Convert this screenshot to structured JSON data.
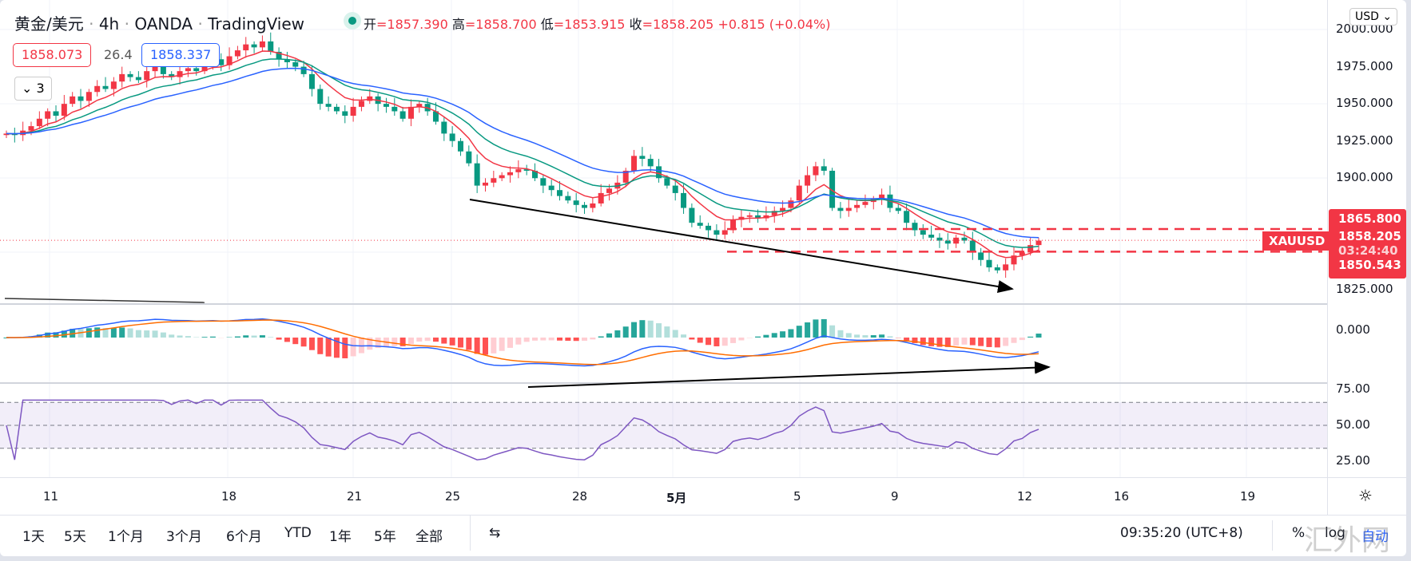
{
  "header": {
    "symbol": "黄金/美元",
    "interval": "4h",
    "broker": "OANDA",
    "source": "TradingView",
    "sep": "·"
  },
  "ohlc": {
    "o_label": "开",
    "o": "1857.390",
    "h_label": "高",
    "h": "1858.700",
    "l_label": "低",
    "l": "1853.915",
    "c_label": "收",
    "c": "1858.205",
    "change": "+0.815 (+0.04%)"
  },
  "legend": {
    "sell": "1858.073",
    "spread": "26.4",
    "buy": "1858.337",
    "collapse": "3"
  },
  "currency": "USD",
  "price_axis": {
    "ticks": [
      "2000.000",
      "1975.000",
      "1950.000",
      "1925.000",
      "1900.000",
      "1825.000"
    ],
    "min": 1815,
    "max": 2005
  },
  "price_labels": {
    "high": "1865.800",
    "last": "1858.205",
    "countdown": "03:24:40",
    "low": "1850.543",
    "symbol_tag": "XAUUSD"
  },
  "macd_axis": {
    "zero": "0.000"
  },
  "rsi_axis": {
    "ticks": [
      "75.00",
      "50.00",
      "25.00"
    ]
  },
  "time_axis": [
    "11",
    "18",
    "21",
    "25",
    "28",
    "5月",
    "5",
    "9",
    "12",
    "16",
    "19"
  ],
  "bottom": {
    "ranges": [
      "1天",
      "5天",
      "1个月",
      "3个月",
      "6个月",
      "YTD",
      "1年",
      "5年",
      "全部"
    ],
    "clock": "09:35:20 (UTC+8)",
    "pct": "%",
    "log": "log",
    "auto": "自动",
    "watermark": "汇外网"
  },
  "colors": {
    "up": "#f23645",
    "down": "#089981",
    "ma_fast": "#f23645",
    "ma_mid": "#089981",
    "ma_slow": "#2962ff",
    "macd": "#2962ff",
    "signal": "#ff6d00",
    "rsi": "#7e57c2"
  },
  "closes": [
    1930,
    1929,
    1932,
    1935,
    1940,
    1945,
    1942,
    1950,
    1955,
    1952,
    1958,
    1962,
    1960,
    1965,
    1970,
    1968,
    1966,
    1972,
    1975,
    1970,
    1968,
    1972,
    1974,
    1972,
    1978,
    1980,
    1976,
    1982,
    1986,
    1990,
    1988,
    1992,
    1985,
    1980,
    1978,
    1975,
    1970,
    1960,
    1950,
    1948,
    1945,
    1942,
    1948,
    1952,
    1955,
    1950,
    1948,
    1945,
    1940,
    1948,
    1950,
    1945,
    1938,
    1930,
    1925,
    1918,
    1910,
    1895,
    1897,
    1900,
    1902,
    1904,
    1906,
    1905,
    1900,
    1895,
    1892,
    1888,
    1885,
    1882,
    1880,
    1883,
    1890,
    1893,
    1897,
    1905,
    1915,
    1913,
    1908,
    1900,
    1895,
    1890,
    1880,
    1870,
    1868,
    1865,
    1862,
    1865,
    1872,
    1874,
    1875,
    1873,
    1875,
    1878,
    1880,
    1885,
    1895,
    1902,
    1908,
    1905,
    1880,
    1878,
    1880,
    1882,
    1884,
    1886,
    1889,
    1880,
    1878,
    1870,
    1865,
    1862,
    1860,
    1858,
    1856,
    1860,
    1858,
    1850,
    1845,
    1840,
    1838,
    1842,
    1848,
    1850,
    1855,
    1858
  ]
}
